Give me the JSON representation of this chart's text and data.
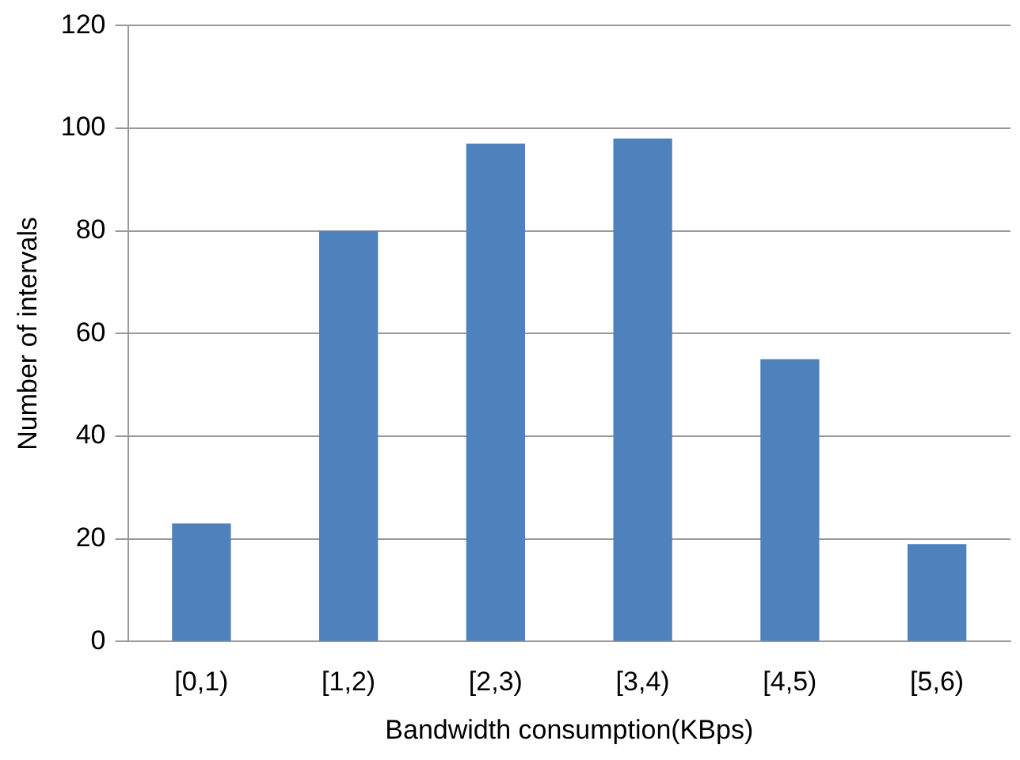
{
  "chart_data": {
    "type": "bar",
    "xlabel": "Bandwidth consumption(KBps)",
    "ylabel": "Number of intervals",
    "categories": [
      "[0,1)",
      "[1,2)",
      "[2,3)",
      "[3,4)",
      "[4,5)",
      "[5,6)"
    ],
    "values": [
      23,
      80,
      97,
      98,
      55,
      19
    ],
    "color": "#4f81bd",
    "ylim": [
      0,
      120
    ],
    "yticks": [
      0,
      20,
      40,
      60,
      80,
      100,
      120
    ],
    "grid": "y",
    "legend": false
  }
}
